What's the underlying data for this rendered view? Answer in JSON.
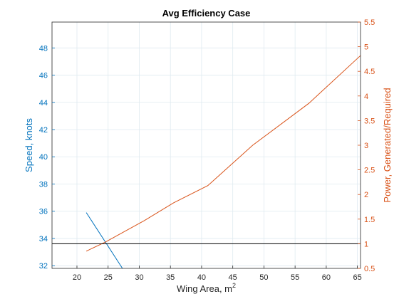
{
  "chart_data": {
    "type": "line",
    "title": "Avg Efficiency Case",
    "xlabel": {
      "base": "Wing Area, m",
      "sup": "2"
    },
    "ylabel_left": "Speed, knots",
    "ylabel_right": "Power, Generated/Required",
    "xlim": [
      16,
      65.5
    ],
    "ylim_left": [
      31.8,
      49.9
    ],
    "ylim_right": [
      0.5,
      5.5
    ],
    "x_ticks": [
      "20",
      "25",
      "30",
      "35",
      "40",
      "45",
      "50",
      "55",
      "60",
      "65"
    ],
    "x_tick_values": [
      20,
      25,
      30,
      35,
      40,
      45,
      50,
      55,
      60,
      65
    ],
    "y_left_ticks": [
      "32",
      "34",
      "36",
      "38",
      "40",
      "42",
      "44",
      "46",
      "48"
    ],
    "y_left_tick_values": [
      32,
      34,
      36,
      38,
      40,
      42,
      44,
      46,
      48
    ],
    "y_right_ticks": [
      "0.5",
      "1",
      "1.5",
      "2",
      "2.5",
      "3",
      "3.5",
      "4",
      "4.5",
      "5",
      "5.5"
    ],
    "y_right_tick_values": [
      0.5,
      1,
      1.5,
      2,
      2.5,
      3,
      3.5,
      4,
      4.5,
      5,
      5.5
    ],
    "grid": true,
    "series": [
      {
        "axis": "left",
        "color": "#0072BD",
        "x": [
          21.5,
          27.3
        ],
        "y": [
          35.9,
          31.8
        ]
      },
      {
        "axis": "right",
        "color": "#D95319",
        "x": [
          21.5,
          24.5,
          27.5,
          30.8,
          35.5,
          41.0,
          48.2,
          57.2,
          65.5
        ],
        "y": [
          0.85,
          1.03,
          1.24,
          1.47,
          1.83,
          2.18,
          3.0,
          3.85,
          4.82
        ]
      },
      {
        "axis": "right",
        "color": "#000000",
        "x": [
          16,
          65.5
        ],
        "y": [
          1.0,
          1.0
        ]
      }
    ],
    "colors": {
      "left_axis": "#0072BD",
      "right_axis": "#D95319",
      "reference_line": "#000000",
      "grid": "#dfeaf0"
    }
  }
}
